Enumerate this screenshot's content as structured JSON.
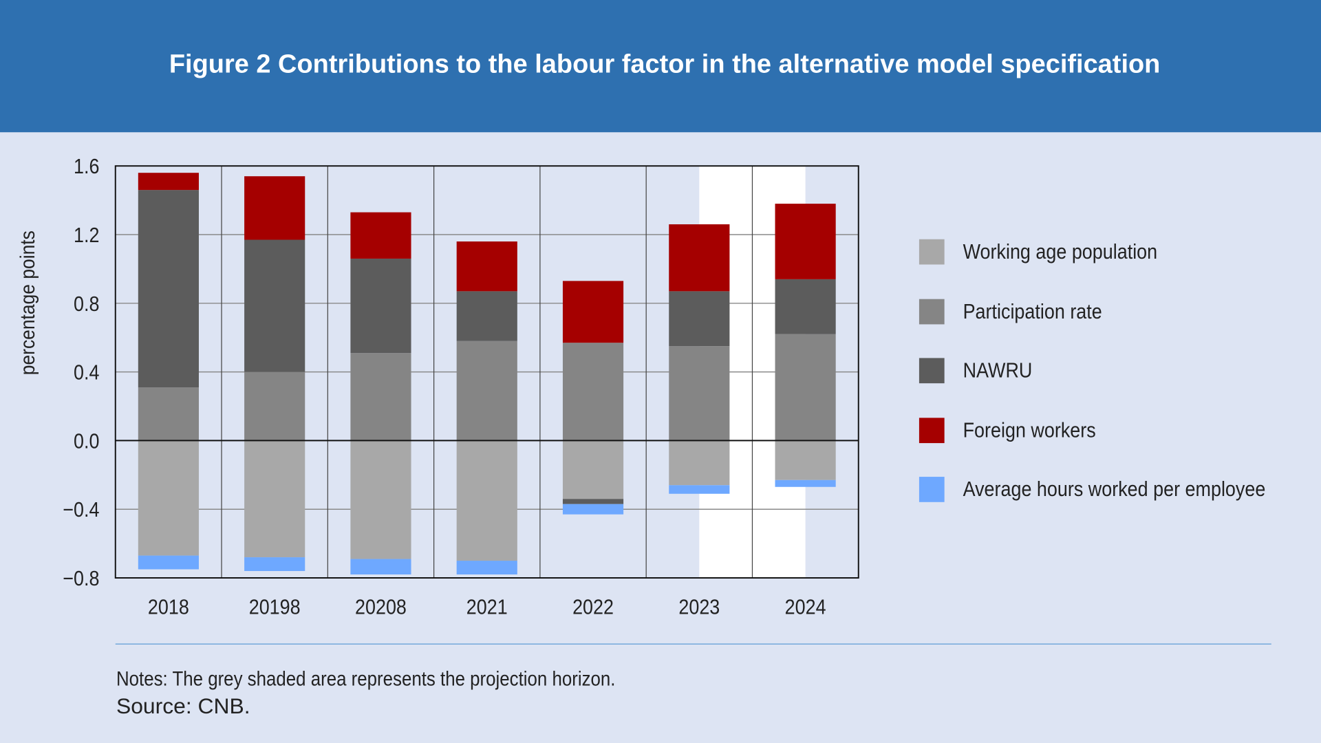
{
  "header": {
    "title": "Figure 2 Contributions to the labour factor in the alternative model specification"
  },
  "chart_data": {
    "type": "bar",
    "stacked": true,
    "title": "Figure 2 Contributions to the labour factor in the alternative model specification",
    "xlabel": "",
    "ylabel": "percentage points",
    "categories": [
      "2018",
      "20198",
      "20208",
      "2021",
      "2022",
      "2023",
      "2024"
    ],
    "ylim": [
      -0.8,
      1.6
    ],
    "yticks": [
      1.6,
      1.2,
      0.8,
      0.4,
      0.0,
      -0.4,
      -0.8
    ],
    "ytick_labels": [
      "1.6",
      "1.2",
      "0.8",
      "0.4",
      "0.0",
      "−0.4",
      "−0.8"
    ],
    "grid": true,
    "legend_position": "right",
    "projection_shading": {
      "from": "2023",
      "to": "2024",
      "color": "#FFFFFF"
    },
    "series": [
      {
        "name": "Working age population",
        "color": "#A8A8A8",
        "values": [
          -0.67,
          -0.68,
          -0.69,
          -0.7,
          -0.34,
          -0.26,
          -0.23
        ]
      },
      {
        "name": "Participation rate",
        "color": "#858585",
        "values": [
          0.31,
          0.4,
          0.51,
          0.58,
          0.57,
          0.55,
          0.62
        ]
      },
      {
        "name": "NAWRU",
        "color": "#5C5C5C",
        "values": [
          1.15,
          0.77,
          0.55,
          0.29,
          -0.03,
          0.32,
          0.32
        ]
      },
      {
        "name": "Foreign workers",
        "color": "#A50000",
        "values": [
          0.1,
          0.37,
          0.27,
          0.29,
          0.36,
          0.39,
          0.44
        ]
      },
      {
        "name": "Average hours worked per employee",
        "color": "#6EA8FF",
        "values": [
          -0.08,
          -0.08,
          -0.09,
          -0.08,
          -0.06,
          -0.05,
          -0.04
        ]
      }
    ]
  },
  "footer": {
    "notes": "Notes: The grey shaded area represents the projection horizon.",
    "source": "Source: CNB."
  }
}
